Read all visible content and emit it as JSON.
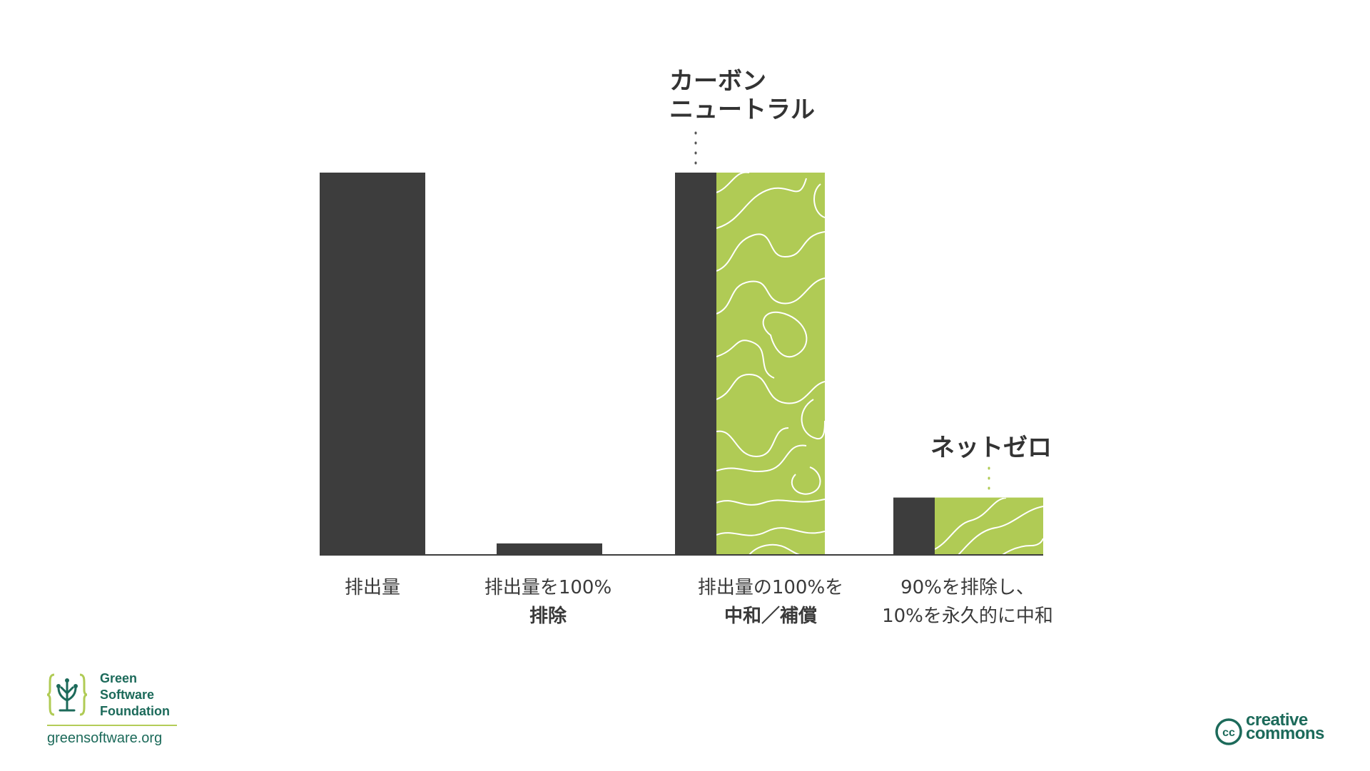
{
  "chart_data": {
    "type": "bar",
    "categories": [
      [
        "排出量",
        ""
      ],
      [
        "排出量を100%",
        "排除"
      ],
      [
        "排出量の100%を",
        "中和／補償"
      ],
      [
        "90%を排除し、",
        "10%を永久的に中和"
      ]
    ],
    "series": [
      {
        "values": [
          100,
          3,
          100,
          15
        ]
      },
      {
        "values": [
          0,
          0,
          100,
          15
        ]
      }
    ],
    "ylim": [
      0,
      100
    ],
    "title": "",
    "xlabel": "",
    "ylabel": "",
    "grid": false,
    "annotations": [
      {
        "text": [
          "カーボン",
          "ニュートラル"
        ],
        "category": 2
      },
      {
        "text": [
          "ネットゼロ"
        ],
        "category": 3
      }
    ]
  },
  "colors": {
    "emissions": "#3d3d3d",
    "neutralized": "#b0cb55",
    "brand": "#1c6a5a"
  },
  "footer": {
    "org_name": [
      "Green",
      "Software",
      "Foundation"
    ],
    "url": "greensoftware.org",
    "license_logo": [
      "creative",
      "commons"
    ],
    "license_icon": "cc"
  }
}
